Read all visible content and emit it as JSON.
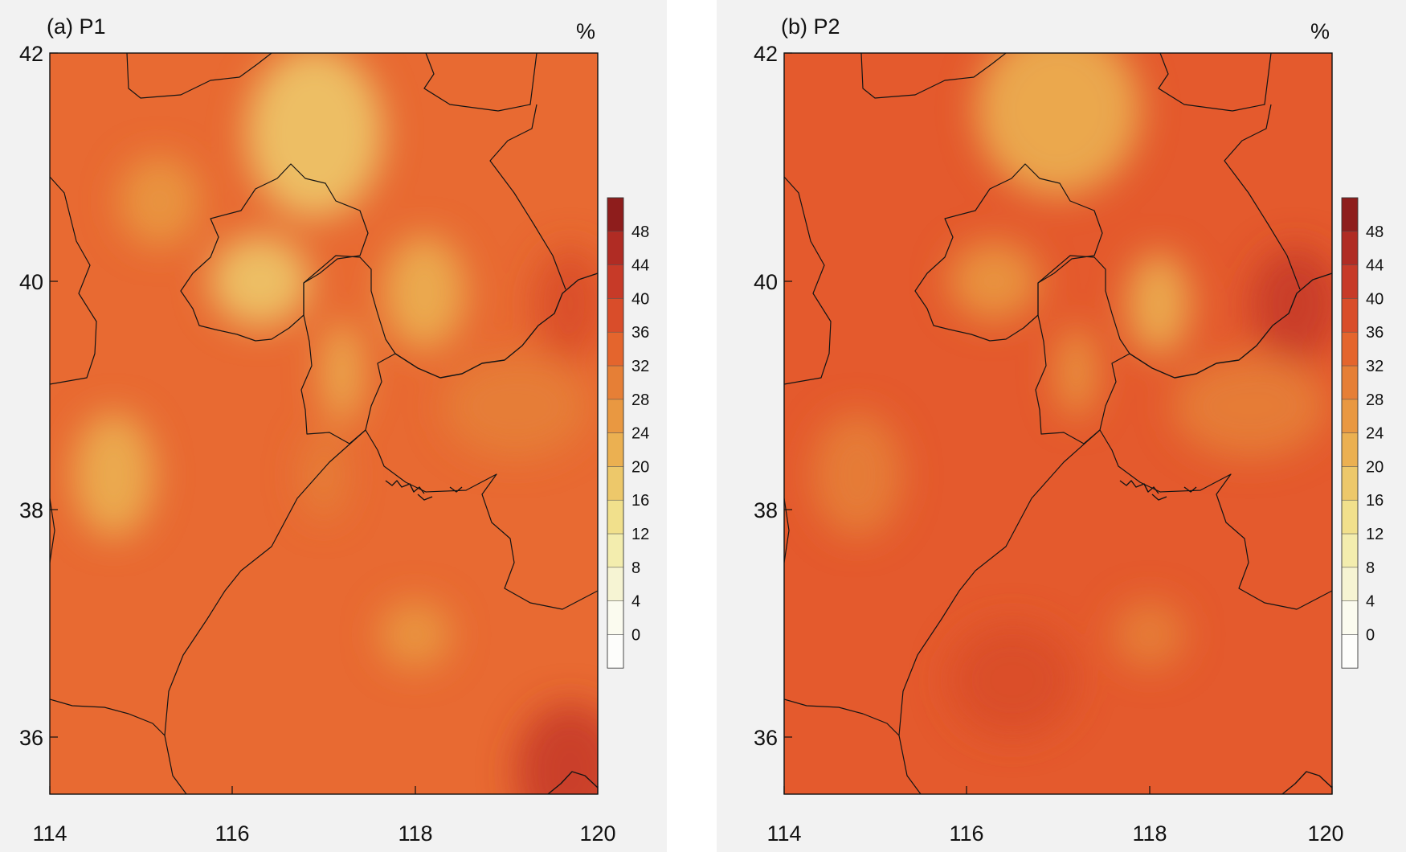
{
  "panels": [
    {
      "title": "(a) P1",
      "unit": "%",
      "base_color": "#e86a32",
      "blobs": [
        {
          "lon": 116.9,
          "lat": 41.3,
          "rx": 0.75,
          "ry": 0.75,
          "value": 18
        },
        {
          "lon": 116.3,
          "lat": 40.0,
          "rx": 0.55,
          "ry": 0.4,
          "value": 17
        },
        {
          "lon": 118.1,
          "lat": 39.9,
          "rx": 0.45,
          "ry": 0.5,
          "value": 20
        },
        {
          "lon": 117.2,
          "lat": 39.2,
          "rx": 0.22,
          "ry": 0.45,
          "value": 22
        },
        {
          "lon": 114.7,
          "lat": 38.3,
          "rx": 0.45,
          "ry": 0.55,
          "value": 21
        },
        {
          "lon": 115.2,
          "lat": 40.7,
          "rx": 0.45,
          "ry": 0.4,
          "value": 27
        },
        {
          "lon": 118.0,
          "lat": 36.9,
          "rx": 0.4,
          "ry": 0.3,
          "value": 27
        },
        {
          "lon": 117.0,
          "lat": 38.3,
          "rx": 0.25,
          "ry": 0.4,
          "value": 28
        },
        {
          "lon": 119.1,
          "lat": 38.9,
          "rx": 0.8,
          "ry": 0.45,
          "value": 28
        },
        {
          "lon": 119.7,
          "lat": 35.7,
          "rx": 0.6,
          "ry": 0.6,
          "value": 42
        },
        {
          "lon": 119.7,
          "lat": 39.8,
          "rx": 0.4,
          "ry": 0.5,
          "value": 38
        }
      ]
    },
    {
      "title": "(b) P2",
      "unit": "%",
      "base_color": "#e45a2d",
      "blobs": [
        {
          "lon": 117.0,
          "lat": 41.5,
          "rx": 0.9,
          "ry": 0.75,
          "value": 22
        },
        {
          "lon": 116.3,
          "lat": 40.0,
          "rx": 0.5,
          "ry": 0.35,
          "value": 24
        },
        {
          "lon": 118.1,
          "lat": 39.8,
          "rx": 0.35,
          "ry": 0.45,
          "value": 20
        },
        {
          "lon": 117.2,
          "lat": 39.2,
          "rx": 0.22,
          "ry": 0.4,
          "value": 25
        },
        {
          "lon": 114.8,
          "lat": 38.3,
          "rx": 0.5,
          "ry": 0.55,
          "value": 30
        },
        {
          "lon": 118.0,
          "lat": 36.9,
          "rx": 0.4,
          "ry": 0.3,
          "value": 28
        },
        {
          "lon": 119.1,
          "lat": 38.9,
          "rx": 0.85,
          "ry": 0.45,
          "value": 31
        },
        {
          "lon": 119.6,
          "lat": 39.8,
          "rx": 0.5,
          "ry": 0.5,
          "value": 42
        },
        {
          "lon": 116.5,
          "lat": 36.5,
          "rx": 0.7,
          "ry": 0.5,
          "value": 37
        }
      ]
    }
  ],
  "axes": {
    "lon_range": [
      114,
      120
    ],
    "lat_range": [
      35.5,
      42
    ],
    "x_ticks": [
      "114",
      "116",
      "118",
      "120"
    ],
    "y_ticks": [
      "36",
      "38",
      "40",
      "42"
    ]
  },
  "colorbar": {
    "labels": [
      "0",
      "4",
      "8",
      "12",
      "16",
      "20",
      "24",
      "28",
      "32",
      "36",
      "40",
      "44",
      "48"
    ],
    "colors": [
      "#fdfdfb",
      "#fbfbef",
      "#f6f4d3",
      "#f3edae",
      "#f1e08c",
      "#edc86a",
      "#ebb051",
      "#e99841",
      "#e67f36",
      "#e4652d",
      "#d94d2a",
      "#c73a28",
      "#b02c24",
      "#8e1d1c"
    ]
  }
}
